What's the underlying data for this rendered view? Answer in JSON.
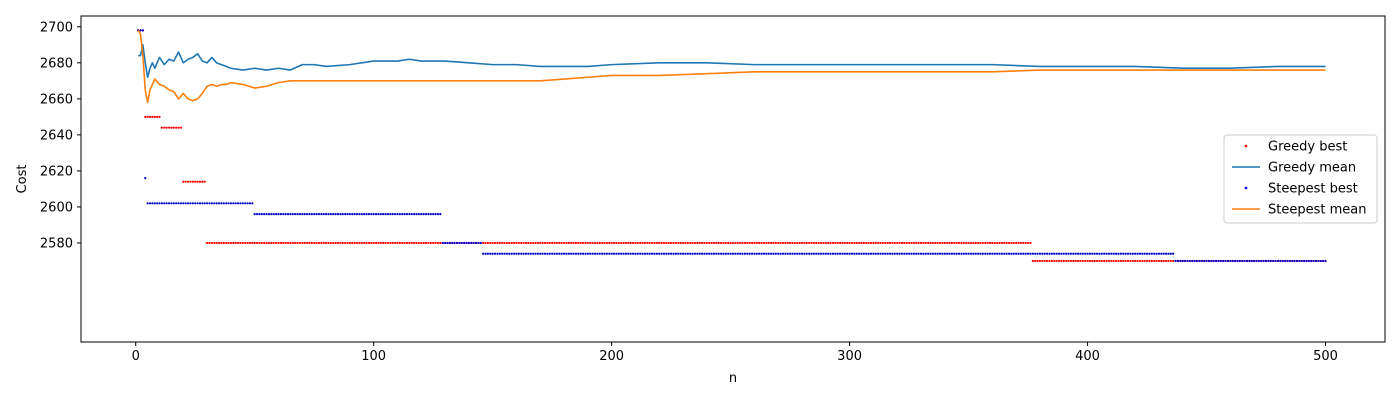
{
  "chart_data": {
    "type": "scatter",
    "title": "",
    "xlabel": "n",
    "ylabel": "Cost",
    "xlim": [
      -23,
      525
    ],
    "ylim": [
      2525,
      2706
    ],
    "xticks": [
      0,
      100,
      200,
      300,
      400,
      500
    ],
    "yticks": [
      2580,
      2600,
      2620,
      2640,
      2660,
      2680,
      2700
    ],
    "grid": false,
    "legend_position": "center-right",
    "series": [
      {
        "name": "Greedy best",
        "kind": "points",
        "color": "#ff0000",
        "steps": [
          [
            1,
            2698
          ],
          [
            4,
            2650
          ],
          [
            11,
            2644
          ],
          [
            20,
            2614
          ],
          [
            30,
            2580
          ],
          [
            377,
            2570
          ]
        ],
        "x_end": 500
      },
      {
        "name": "Greedy mean",
        "kind": "line",
        "color": "#1f77b4",
        "x": [
          1,
          2,
          3,
          4,
          5,
          6,
          7,
          8,
          10,
          12,
          14,
          16,
          18,
          20,
          22,
          24,
          26,
          28,
          30,
          32,
          34,
          36,
          38,
          40,
          45,
          50,
          55,
          60,
          65,
          70,
          75,
          80,
          90,
          100,
          110,
          115,
          120,
          130,
          140,
          150,
          160,
          170,
          180,
          190,
          200,
          220,
          240,
          260,
          280,
          300,
          320,
          340,
          360,
          380,
          400,
          420,
          440,
          460,
          480,
          500
        ],
        "y": [
          2684,
          2684,
          2690,
          2680,
          2672,
          2677,
          2680,
          2677,
          2683,
          2679,
          2682,
          2681,
          2686,
          2680,
          2682,
          2683,
          2685,
          2681,
          2680,
          2683,
          2680,
          2679,
          2678,
          2677,
          2676,
          2677,
          2676,
          2677,
          2676,
          2679,
          2679,
          2678,
          2679,
          2681,
          2681,
          2682,
          2681,
          2681,
          2680,
          2679,
          2679,
          2678,
          2678,
          2678,
          2679,
          2680,
          2680,
          2679,
          2679,
          2679,
          2679,
          2679,
          2679,
          2678,
          2678,
          2678,
          2677,
          2677,
          2678,
          2678
        ]
      },
      {
        "name": "Steepest best",
        "kind": "points",
        "color": "#0000cc",
        "steps": [
          [
            1,
            2698
          ],
          [
            4,
            2616
          ],
          [
            5,
            2602
          ],
          [
            50,
            2596
          ],
          [
            129,
            2580
          ],
          [
            146,
            2574
          ],
          [
            437,
            2570
          ]
        ],
        "x_end": 500
      },
      {
        "name": "Steepest mean",
        "kind": "line",
        "color": "#ff7f0e",
        "x": [
          1,
          2,
          3,
          4,
          5,
          6,
          7,
          8,
          10,
          12,
          14,
          16,
          18,
          20,
          22,
          24,
          26,
          28,
          30,
          32,
          34,
          36,
          38,
          40,
          45,
          50,
          55,
          60,
          65,
          70,
          80,
          90,
          100,
          110,
          120,
          130,
          140,
          150,
          160,
          170,
          180,
          190,
          200,
          220,
          240,
          260,
          280,
          300,
          320,
          340,
          360,
          380,
          400,
          420,
          440,
          460,
          480,
          500
        ],
        "y": [
          2698,
          2696,
          2684,
          2665,
          2658,
          2665,
          2668,
          2671,
          2668,
          2667,
          2665,
          2664,
          2660,
          2663,
          2660,
          2659,
          2660,
          2663,
          2667,
          2668,
          2667,
          2668,
          2668,
          2669,
          2668,
          2666,
          2667,
          2669,
          2670,
          2670,
          2670,
          2670,
          2670,
          2670,
          2670,
          2670,
          2670,
          2670,
          2670,
          2670,
          2671,
          2672,
          2673,
          2673,
          2674,
          2675,
          2675,
          2675,
          2675,
          2675,
          2675,
          2676,
          2676,
          2676,
          2676,
          2676,
          2676,
          2676
        ]
      }
    ]
  }
}
